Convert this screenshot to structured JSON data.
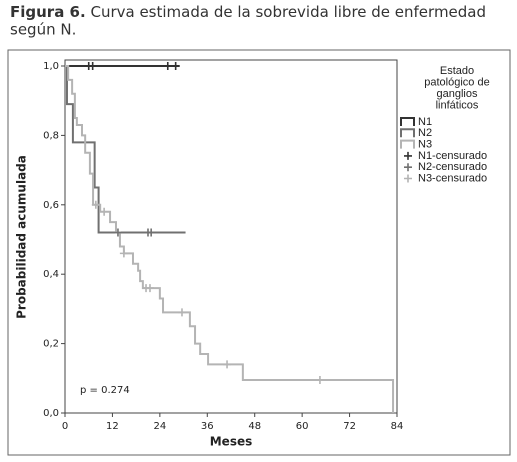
{
  "chart_data": {
    "type": "step",
    "figure_label": "Figura 6.",
    "title": "Curva estimada de la sobrevida libre de enfermedad según N.",
    "xlabel": "Meses",
    "ylabel": "Probabilidad acumulada",
    "annotation": "p = 0.274",
    "legend_title_lines": [
      "Estado",
      "patológico de",
      "ganglios",
      "linfáticos"
    ],
    "xlim": [
      0,
      84
    ],
    "xticks": [
      0,
      12,
      24,
      36,
      48,
      60,
      72,
      84
    ],
    "ylim": [
      0,
      1
    ],
    "yticks": [
      {
        "value": 0,
        "label": "0,0"
      },
      {
        "value": 0.2,
        "label": "0,2"
      },
      {
        "value": 0.4,
        "label": "0,4"
      },
      {
        "value": 0.6,
        "label": "0,6"
      },
      {
        "value": 0.8,
        "label": "0,8"
      },
      {
        "value": 1,
        "label": "1,0"
      }
    ],
    "series": [
      {
        "name": "N1",
        "color": "#333333",
        "x": [
          0,
          29
        ],
        "values": [
          1,
          1
        ]
      },
      {
        "name": "N2",
        "color": "#707070",
        "x": [
          0,
          0.5,
          2,
          7.5,
          8.5,
          30.5
        ],
        "values": [
          1,
          0.89,
          0.78,
          0.65,
          0.52,
          0.52
        ]
      },
      {
        "name": "N3",
        "color": "#b4b4b4",
        "x": [
          0,
          0.8,
          1.8,
          2.5,
          3.0,
          4.3,
          5.1,
          6.3,
          7.1,
          8.9,
          11.4,
          12.9,
          13.9,
          14.9,
          17.2,
          18.5,
          19.0,
          19.7,
          24.0,
          24.8,
          31.6,
          32.9,
          34.2,
          36.2,
          45.0,
          83.0
        ],
        "values": [
          1,
          0.96,
          0.92,
          0.85,
          0.83,
          0.8,
          0.75,
          0.69,
          0.6,
          0.58,
          0.55,
          0.52,
          0.48,
          0.46,
          0.43,
          0.41,
          0.38,
          0.36,
          0.33,
          0.29,
          0.25,
          0.2,
          0.17,
          0.14,
          0.095,
          0
        ]
      }
    ],
    "censored": [
      {
        "name": "N1-censurado",
        "color": "#333333",
        "x": [
          6,
          7,
          26,
          28
        ],
        "values": [
          1,
          1,
          1,
          1
        ]
      },
      {
        "name": "N2-censurado",
        "color": "#707070",
        "x": [
          13.4,
          21,
          21.8
        ],
        "values": [
          0.52,
          0.52,
          0.52
        ]
      },
      {
        "name": "N3-censurado",
        "color": "#b4b4b4",
        "x": [
          7.8,
          9.9,
          14.9,
          20.5,
          21.5,
          29.6,
          41,
          64.5
        ],
        "values": [
          0.6,
          0.58,
          0.46,
          0.36,
          0.36,
          0.29,
          0.14,
          0.095
        ]
      }
    ]
  }
}
